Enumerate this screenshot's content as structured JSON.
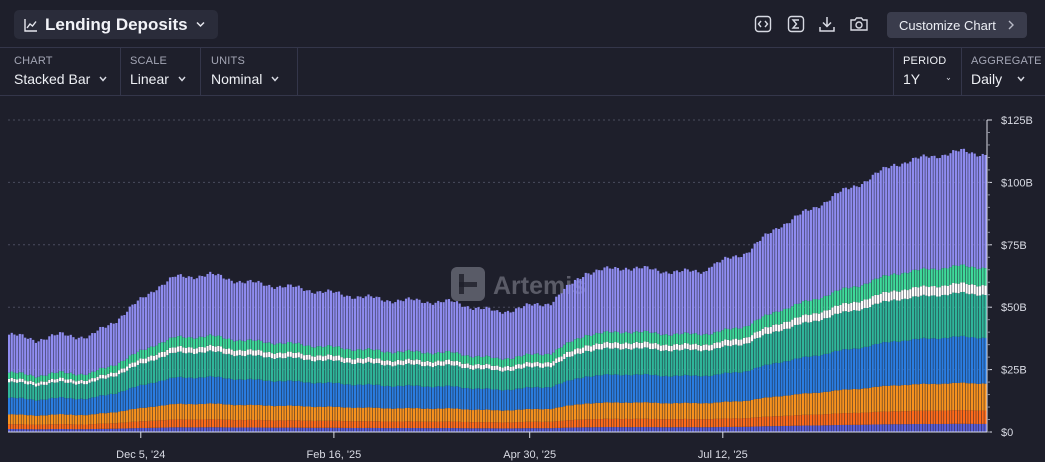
{
  "header": {
    "title": "Lending Deposits",
    "customize_label": "Customize Chart"
  },
  "controls": {
    "chart": {
      "label": "CHART",
      "value": "Stacked Bar"
    },
    "scale": {
      "label": "SCALE",
      "value": "Linear"
    },
    "units": {
      "label": "UNITS",
      "value": "Nominal"
    },
    "period": {
      "label": "PERIOD",
      "value": "1Y"
    },
    "aggregate": {
      "label": "AGGREGATE",
      "value": "Daily"
    }
  },
  "watermark": "Artemis",
  "colors": {
    "background": "#1e1f2b",
    "series": [
      "#5b5fd9",
      "#ff6b1a",
      "#f7921e",
      "#2a7de1",
      "#2fb59a",
      "#ffffff",
      "#3ed99a",
      "#8f8cf0"
    ]
  },
  "chart_data": {
    "type": "bar",
    "stacked": true,
    "ylim": [
      0,
      125
    ],
    "y_unit": "$B",
    "yticks": [
      "$0",
      "$25B",
      "$50B",
      "$75B",
      "$100B",
      "$125B"
    ],
    "xticks": [
      {
        "label": "Dec 5, '24",
        "index": 49
      },
      {
        "label": "Feb 16, '25",
        "index": 121
      },
      {
        "label": "Apr 30, '25",
        "index": 194
      },
      {
        "label": "Jul 12, '25",
        "index": 266
      }
    ],
    "grid": true,
    "legend": "none",
    "start_date": "2024-10-17",
    "days": 365,
    "total_keyframes": [
      [
        0,
        39
      ],
      [
        10,
        37
      ],
      [
        20,
        39
      ],
      [
        30,
        38
      ],
      [
        40,
        45
      ],
      [
        55,
        58
      ],
      [
        62,
        62
      ],
      [
        75,
        63
      ],
      [
        88,
        60
      ],
      [
        105,
        58
      ],
      [
        125,
        55
      ],
      [
        140,
        53
      ],
      [
        165,
        52
      ],
      [
        182,
        48
      ],
      [
        202,
        52
      ],
      [
        215,
        64
      ],
      [
        230,
        66
      ],
      [
        250,
        64
      ],
      [
        263,
        65
      ],
      [
        275,
        70
      ],
      [
        287,
        80
      ],
      [
        300,
        87
      ],
      [
        308,
        92
      ],
      [
        318,
        97
      ],
      [
        330,
        104
      ],
      [
        343,
        107
      ],
      [
        355,
        109
      ],
      [
        364,
        108
      ]
    ],
    "series_shares": [
      {
        "name": "",
        "share": 0.03
      },
      {
        "name": "",
        "share": 0.05
      },
      {
        "name": "",
        "share": 0.1
      },
      {
        "name": "",
        "share": 0.17
      },
      {
        "name": "",
        "share": 0.16
      },
      {
        "name": "",
        "share": 0.035
      },
      {
        "name": "",
        "share": 0.065
      },
      {
        "name": "",
        "share": 0.39
      }
    ]
  }
}
